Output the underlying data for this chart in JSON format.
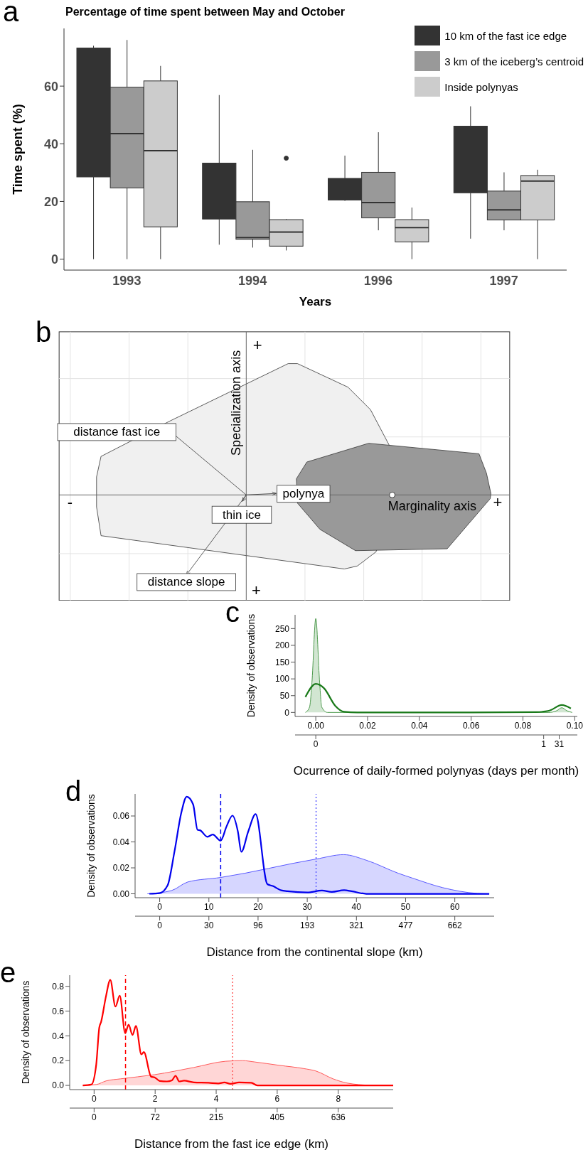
{
  "chart_data": [
    {
      "type": "box",
      "title": "Percentage of time spent between May and October",
      "xlabel": "Years",
      "ylabel": "Time spent (%)",
      "annotations": [
        "a"
      ],
      "categories": [
        "1993",
        "1994",
        "1996",
        "1997"
      ],
      "ylim": [
        -3.8,
        80
      ],
      "yticks": [
        0,
        20,
        40,
        60
      ],
      "legend": "top right",
      "series": [
        {
          "name": "10 km of the fast ice edge",
          "color": "#333333",
          "boxes": [
            {
              "low": 0,
              "q1": 28.5,
              "median": null,
              "q3": 73.2,
              "high": 74
            },
            {
              "low": 5,
              "q1": 13.9,
              "median": null,
              "q3": 33.3,
              "high": 56.9
            },
            {
              "low": 20.2,
              "q1": 20.5,
              "median": null,
              "q3": 28,
              "high": 35.9
            },
            {
              "low": 7.1,
              "q1": 23,
              "median": null,
              "q3": 46.1,
              "high": 53
            }
          ]
        },
        {
          "name": "3 km of the iceberg’s centroid",
          "color": "#999999",
          "boxes": [
            {
              "low": 0,
              "q1": 24.7,
              "median": 43.5,
              "q3": 59.6,
              "high": 76
            },
            {
              "low": 4,
              "q1": 6.9,
              "median": 7.5,
              "q3": 19.9,
              "high": 37.9
            },
            {
              "low": 10,
              "q1": 14.3,
              "median": 19.6,
              "q3": 30.1,
              "high": 44
            },
            {
              "low": 10,
              "q1": 13.6,
              "median": 17.1,
              "q3": 23.6,
              "high": 30.1
            }
          ]
        },
        {
          "name": "Inside polynyas",
          "color": "#cccccc",
          "boxes": [
            {
              "low": 0,
              "q1": 11.2,
              "median": 37.6,
              "q3": 61.8,
              "high": 67
            },
            {
              "low": 3,
              "q1": 4.5,
              "median": 9.4,
              "q3": 13.7,
              "high": 13.9,
              "outliers": [
                35
              ]
            },
            {
              "low": 0,
              "q1": 6,
              "median": 10.9,
              "q3": 13.7,
              "high": 17.9
            },
            {
              "low": 0,
              "q1": 13.6,
              "median": 27.1,
              "q3": 29,
              "high": 31
            }
          ]
        }
      ]
    },
    {
      "type": "other",
      "annotations": [
        "b",
        "Specialization axis",
        "Marginality axis",
        "distance fast ice",
        "polynya",
        "thin ice",
        "distance slope",
        "+",
        "-",
        "+",
        "+"
      ]
    },
    {
      "type": "line",
      "annotations": [
        "c",
        "0",
        "1",
        "31"
      ],
      "xlabel": "Ocurrence of daily-formed polynyas (days per month)",
      "ylabel": "Density of observations",
      "xlim": [
        -0.008,
        0.101
      ],
      "xticks": [
        {
          "value": 0,
          "label": "0.00"
        },
        0.02,
        0.04,
        0.06,
        0.08,
        {
          "value": 0.1,
          "label": "0.10"
        }
      ],
      "ylim": [
        -12,
        291
      ],
      "yticks": [
        0,
        50,
        100,
        150,
        200,
        250
      ],
      "series": [
        {
          "type": "area",
          "color": "#4d9a4d",
          "x": [
            -0.004,
            -0.0024,
            -0.0015,
            0,
            0.0015,
            0.0023,
            0.0045,
            0.09,
            0.093,
            0.095,
            0.097,
            0.099
          ],
          "values": [
            0,
            16,
            88,
            280,
            88,
            16,
            0,
            0,
            5,
            14,
            5,
            0
          ]
        },
        {
          "type": "line",
          "color": "#1a7a1a",
          "x": [
            -0.004,
            0,
            0.0032,
            0.0075,
            0.0109,
            0.016,
            0.06,
            0.085,
            0.09,
            0.095,
            0.0985
          ],
          "values": [
            46,
            85,
            72,
            20,
            2,
            0,
            0,
            1,
            5,
            22,
            12
          ]
        }
      ]
    },
    {
      "type": "line",
      "annotations": [
        "d",
        "0",
        "30",
        "96",
        "193",
        "321",
        "477",
        "662"
      ],
      "xlabel": "Distance from the continental slope (km)",
      "ylabel": "Density of observations",
      "xlim": [
        -5,
        68
      ],
      "xticks": [
        0,
        10,
        20,
        30,
        40,
        50,
        60
      ],
      "ylim": [
        -0.003,
        0.077
      ],
      "yticks": [
        {
          "value": 0,
          "label": "0.00"
        },
        0.02,
        0.04,
        0.06
      ],
      "ref_lines": [
        {
          "axis": "x",
          "value": 12.4,
          "color": "#0000ee",
          "line_style": "dashed"
        },
        {
          "axis": "x",
          "value": 31.8,
          "color": "#5a5aff",
          "line_style": "dotted"
        }
      ],
      "series": [
        {
          "type": "area",
          "color": "#5a5aff",
          "x": [
            -2.5,
            2.4,
            5.7,
            12.4,
            31.8,
            37.4,
            42.0,
            48.6,
            51.4,
            57.5,
            64.6,
            67
          ],
          "values": [
            0,
            0.0025,
            0.0091,
            0.0126,
            0.0268,
            0.0302,
            0.0259,
            0.0157,
            0.0121,
            0.0048,
            0.0003,
            0
          ]
        },
        {
          "type": "line",
          "color": "#0000ee",
          "x": [
            -2.1,
            0,
            1.6,
            3.0,
            4.4,
            5.5,
            6.8,
            7.7,
            8.2,
            9.7,
            10.8,
            12.4,
            13.6,
            14.8,
            15.9,
            16.6,
            18.0,
            19.5,
            21.9,
            23.0,
            24.7,
            26,
            30,
            33,
            35,
            37.5,
            39,
            42,
            67
          ],
          "values": [
            0,
            0.0005,
            0.0064,
            0.0324,
            0.0626,
            0.0749,
            0.0689,
            0.0493,
            0.049,
            0.0439,
            0.0457,
            0.041,
            0.052,
            0.0603,
            0.048,
            0.0324,
            0.048,
            0.0614,
            0.0074,
            0.006,
            0.0027,
            0.002,
            0.001,
            0.0025,
            0.0015,
            0.0028,
            0.002,
            0,
            0
          ]
        }
      ]
    },
    {
      "type": "line",
      "annotations": [
        "e",
        "0",
        "72",
        "215",
        "405",
        "636"
      ],
      "xlabel": "Distance from the fast ice edge (km)",
      "ylabel": "Density of observations",
      "xlim": [
        -0.8,
        9.8
      ],
      "xticks": [
        0,
        2,
        4,
        6,
        8
      ],
      "ylim": [
        -0.034,
        0.89
      ],
      "yticks": [
        {
          "value": 0,
          "label": "0.0"
        },
        0.2,
        0.4,
        0.6,
        0.8
      ],
      "ref_lines": [
        {
          "axis": "x",
          "value": 1.03,
          "color": "#ff0000",
          "line_style": "dashed"
        },
        {
          "axis": "x",
          "value": 4.54,
          "color": "#ff5a5a",
          "line_style": "dotted"
        }
      ],
      "series": [
        {
          "type": "area",
          "color": "#ff5a5a",
          "x": [
            -0.37,
            0.07,
            0.39,
            0.87,
            1.99,
            3.27,
            4.31,
            4.87,
            5.27,
            6.07,
            6.87,
            7.27,
            7.83,
            8.31,
            9.03,
            9.8
          ],
          "values": [
            0,
            0.007,
            0.036,
            0.053,
            0.087,
            0.145,
            0.195,
            0.2,
            0.189,
            0.162,
            0.136,
            0.116,
            0.053,
            0.018,
            0.002,
            0
          ]
        },
        {
          "type": "line",
          "color": "#ff0000",
          "x": [
            -0.37,
            -0.09,
            0.07,
            0.17,
            0.23,
            0.39,
            0.53,
            0.7,
            0.84,
            1.02,
            1.13,
            1.26,
            1.37,
            1.55,
            1.63,
            1.87,
            1.99,
            2.15,
            2.39,
            2.55,
            2.67,
            2.79,
            2.95,
            3.27,
            3.75,
            4.07,
            4.27,
            4.47,
            4.75,
            5.15,
            5.35,
            9.8
          ],
          "values": [
            0,
            0.007,
            0.168,
            0.467,
            0.513,
            0.72,
            0.852,
            0.637,
            0.725,
            0.421,
            0.49,
            0.407,
            0.48,
            0.25,
            0.269,
            0.07,
            0.064,
            0.036,
            0.032,
            0.041,
            0.078,
            0.032,
            0.038,
            0.024,
            0.021,
            0.016,
            0.024,
            0.013,
            0.024,
            0.021,
            0,
            0
          ]
        }
      ]
    }
  ]
}
